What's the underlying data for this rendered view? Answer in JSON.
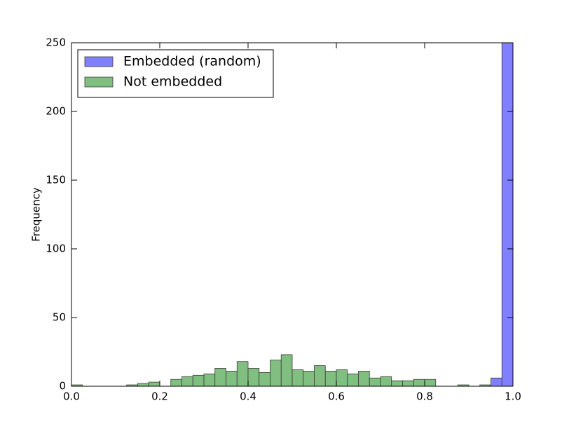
{
  "chart_data": {
    "type": "histogram",
    "ylabel": "Frequency",
    "xlim": [
      0.0,
      1.0
    ],
    "xticks": [
      {
        "value": 0,
        "label": "0.0"
      },
      0.2,
      0.4,
      0.6,
      0.8,
      {
        "value": 1,
        "label": "1.0"
      }
    ],
    "ylim": [
      0,
      250
    ],
    "yticks": [
      0,
      50,
      100,
      150,
      200,
      250
    ],
    "legend": "upper left",
    "series": [
      {
        "name": "Embedded (random)",
        "color": "#8080ff",
        "bins": [
          0.95,
          0.975,
          1.0
        ],
        "values": [
          6,
          250
        ]
      },
      {
        "name": "Not embedded",
        "color": "#80bf80",
        "bins": [
          0,
          0.025,
          0.05,
          0.075,
          0.1,
          0.125,
          0.15,
          0.175,
          0.2,
          0.225,
          0.25,
          0.275,
          0.3,
          0.325,
          0.35,
          0.375,
          0.4,
          0.425,
          0.45,
          0.475,
          0.5,
          0.525,
          0.55,
          0.575,
          0.6,
          0.625,
          0.65,
          0.675,
          0.7,
          0.725,
          0.75,
          0.775,
          0.8,
          0.825,
          0.85,
          0.875,
          0.9,
          0.925,
          0.95
        ],
        "values": [
          1,
          0,
          0,
          0,
          0,
          1,
          2,
          3,
          0,
          5,
          7,
          8,
          9,
          13,
          11,
          18,
          13,
          10,
          19,
          23,
          12,
          11,
          15,
          11,
          12,
          9,
          11,
          6,
          7,
          4,
          4,
          5,
          5,
          0,
          0,
          1,
          0,
          1
        ]
      }
    ]
  }
}
